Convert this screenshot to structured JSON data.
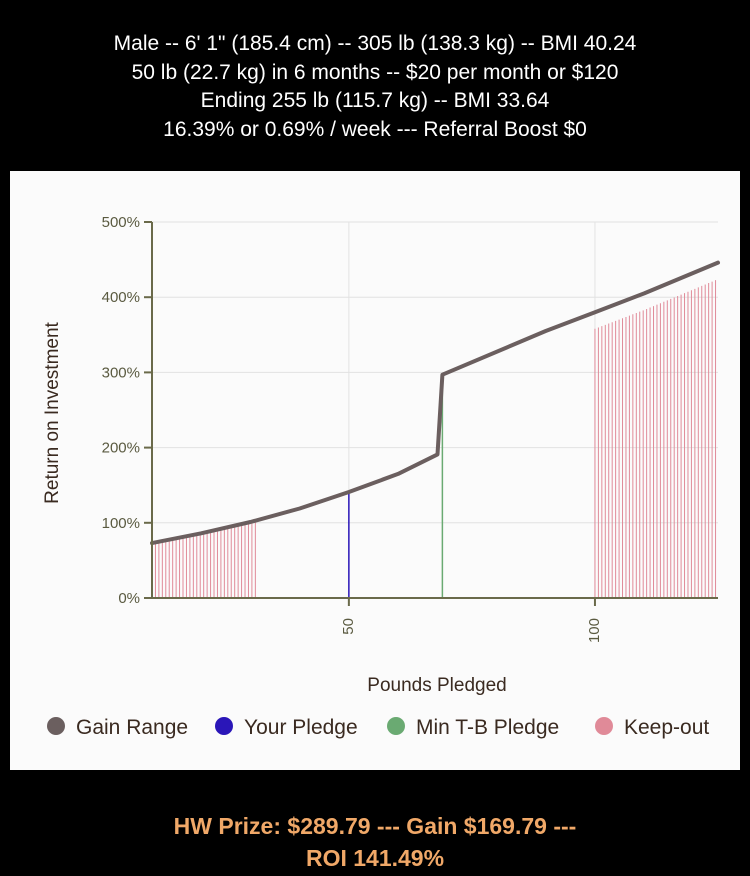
{
  "header": {
    "lines": [
      "Male -- 6' 1\" (185.4 cm) -- 305 lb (138.3 kg) -- BMI 40.24",
      "50 lb (22.7 kg) in 6 months -- $20 per month or $120",
      "Ending 255 lb (115.7 kg) -- BMI 33.64",
      "16.39% or 0.69% / week --- Referral Boost $0"
    ]
  },
  "chart_data": {
    "type": "line",
    "xlabel": "Pounds Pledged",
    "ylabel": "Return on Investment",
    "xlim": [
      10,
      125
    ],
    "ylim": [
      0,
      500
    ],
    "x_ticks": [
      50,
      100
    ],
    "x_tick_labels": [
      "50",
      "100"
    ],
    "y_ticks": [
      0,
      100,
      200,
      300,
      400,
      500
    ],
    "y_tick_labels": [
      "0%",
      "100%",
      "200%",
      "300%",
      "400%",
      "500%"
    ],
    "grid": true,
    "legend_position": "bottom",
    "series": [
      {
        "name": "Gain Range",
        "color": "#6b5f5f",
        "x": [
          10,
          20,
          30,
          40,
          50,
          60,
          68,
          69,
          90,
          100,
          110,
          125
        ],
        "y": [
          73,
          86,
          101,
          119,
          141,
          165,
          191,
          297,
          355,
          380,
          405,
          446
        ]
      }
    ],
    "markers": [
      {
        "name": "Your Pledge",
        "color": "#2a16b8",
        "x": 50,
        "y_top": 141
      },
      {
        "name": "Min T-B Pledge",
        "color": "#6aaa72",
        "x": 69,
        "y_top": 297
      }
    ],
    "keep_out": {
      "name": "Keep-out",
      "color": "#e08a98",
      "ranges": [
        {
          "x_start": 10,
          "x_end": 31,
          "offset": -2
        },
        {
          "x_start": 100,
          "x_end": 125,
          "offset": -22
        }
      ]
    },
    "legend": [
      {
        "label": "Gain Range",
        "color": "#6b5f5f"
      },
      {
        "label": "Your Pledge",
        "color": "#2a16b8"
      },
      {
        "label": "Min T-B Pledge",
        "color": "#6aaa72"
      },
      {
        "label": "Keep-out",
        "color": "#e08a98"
      }
    ]
  },
  "footer": {
    "line1": "HW Prize: $289.79 --- Gain $169.79 ---",
    "line2": "ROI 141.49%"
  }
}
